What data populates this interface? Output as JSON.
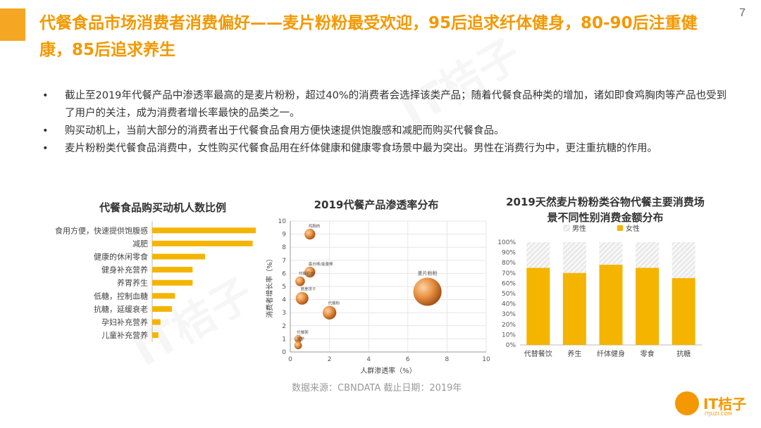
{
  "page_number": "7",
  "title": "代餐食品市场消费者消费偏好——麦片粉粉最受欢迎，95后追求纤体健身，80-90后注重健康，85后追求养生",
  "bullets": [
    "截止至2019年代餐产品中渗透率最高的是麦片粉粉，超过40%的消费者会选择该类产品；随着代餐食品种类的增加，诸如即食鸡胸肉等产品也受到了用户的关注，成为消费者增长率最快的品类之一。",
    "购买动机上，当前大部分的消费者出于代餐食品食用方便快速提供饱腹感和减肥而购买代餐食品。",
    "麦片粉粉类代餐食品消费中，女性购买代餐食品用在纤体健康和健康零食场景中最为突出。男性在消费行为中，更注重抗糖的作用。"
  ],
  "bullet_symbol": "•",
  "source": "数据来源：CBNDATA   截止日期：2019年",
  "logo": {
    "text": "IT桔子",
    "sub": "ITJUZI.COM"
  },
  "watermark": "IT桔子",
  "colors": {
    "accent": "#F5A623",
    "bar": "#F5B400",
    "male_stripe": "#D9D9D9",
    "bubble": "#E08A3A"
  },
  "chart_data": [
    {
      "type": "bar",
      "orientation": "horizontal",
      "title": "代餐食品购买动机人数比例",
      "categories": [
        "食用方便，快速提供饱腹感",
        "减肥",
        "健康的休闲零食",
        "健身补充营养",
        "养胃养生",
        "低糖，控制血糖",
        "抗糖，延缓衰老",
        "孕妇补充营养",
        "儿童补充营养"
      ],
      "values": [
        1.0,
        0.97,
        0.51,
        0.39,
        0.39,
        0.22,
        0.19,
        0.08,
        0.06
      ],
      "grid": false
    },
    {
      "type": "scatter",
      "subtype": "bubble",
      "title": "2019代餐产品渗透率分布",
      "xlabel": "人群渗透率（%）",
      "ylabel": "消费者增长率（%）",
      "xlim": [
        0,
        10
      ],
      "ylim": [
        0,
        10
      ],
      "xticks": [
        "0",
        "2",
        "4",
        "6",
        "8",
        "10"
      ],
      "yticks": [
        "0",
        "1",
        "2",
        "3",
        "4",
        "5",
        "6",
        "7",
        "8",
        "9",
        "10"
      ],
      "grid": true,
      "points": [
        {
          "label": "鸡胸肉",
          "x": 1.0,
          "y": 9.0,
          "size": 0.5
        },
        {
          "label": "蛋白棒/能量棒",
          "x": 1.0,
          "y": 6.1,
          "size": 0.5
        },
        {
          "label": "代餐奶昔",
          "x": 0.5,
          "y": 5.4,
          "size": 0.4
        },
        {
          "label": "燕麦饼干",
          "x": 0.6,
          "y": 4.1,
          "size": 0.7
        },
        {
          "label": "代餐粉",
          "x": 2.0,
          "y": 3.0,
          "size": 0.8
        },
        {
          "label": "代餐粥",
          "x": 0.4,
          "y": 1.0,
          "size": 0.25
        },
        {
          "label": "魔芋",
          "x": 0.4,
          "y": 0.5,
          "size": 0.25
        },
        {
          "label": "麦片粉粉",
          "x": 7.0,
          "y": 4.6,
          "size": 3.0
        }
      ]
    },
    {
      "type": "bar",
      "subtype": "stacked-100",
      "title": "2019天然麦片粉粉类谷物代餐主要消费场景不同性别消费金额分布",
      "categories": [
        "代替餐饮",
        "养生",
        "纤体健身",
        "零食",
        "抗糖"
      ],
      "series": [
        {
          "name": "男性",
          "values": [
            25,
            30,
            22,
            25,
            35
          ]
        },
        {
          "name": "女性",
          "values": [
            75,
            70,
            78,
            75,
            65
          ]
        }
      ],
      "ylim": [
        0,
        100
      ],
      "yticks": [
        "0%",
        "10%",
        "20%",
        "30%",
        "40%",
        "50%",
        "60%",
        "70%",
        "80%",
        "90%",
        "100%"
      ],
      "legend": "top",
      "grid": false
    }
  ]
}
